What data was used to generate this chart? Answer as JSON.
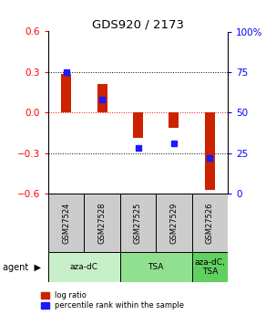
{
  "title": "GDS920 / 2173",
  "samples": [
    "GSM27524",
    "GSM27528",
    "GSM27525",
    "GSM27529",
    "GSM27526"
  ],
  "log_ratios": [
    0.285,
    0.215,
    -0.19,
    -0.115,
    -0.575
  ],
  "percentile_ranks": [
    75,
    58,
    28,
    31,
    22
  ],
  "agent_groups": [
    {
      "label": "aza-dC",
      "start": 0,
      "end": 2,
      "color": "#c8f0c8"
    },
    {
      "label": "TSA",
      "start": 2,
      "end": 4,
      "color": "#90e090"
    },
    {
      "label": "aza-dC,\nTSA",
      "start": 4,
      "end": 5,
      "color": "#60d060"
    }
  ],
  "ylim_left": [
    -0.6,
    0.6
  ],
  "ylim_right": [
    0,
    100
  ],
  "yticks_left": [
    -0.6,
    -0.3,
    0.0,
    0.3,
    0.6
  ],
  "yticks_right": [
    0,
    25,
    50,
    75,
    100
  ],
  "ytick_labels_right": [
    "0",
    "25",
    "50",
    "75",
    "100%"
  ],
  "bar_color_red": "#cc2200",
  "bar_color_blue": "#1a1aff",
  "bar_width": 0.28,
  "blue_marker_size": 5,
  "background_color": "#ffffff",
  "sample_box_color": "#cccccc",
  "legend_label_red": "log ratio",
  "legend_label_blue": "percentile rank within the sample",
  "agent_label": "agent"
}
